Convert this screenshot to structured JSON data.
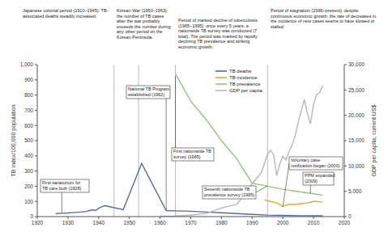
{
  "chart_data": {
    "type": "line",
    "y_label": "TB index/100,000 population",
    "y2_label": "GDP per capita, current US$",
    "xlim": [
      1920,
      2020
    ],
    "xticks": [
      1920,
      1930,
      1940,
      1950,
      1960,
      1970,
      1980,
      1990,
      2000,
      2010,
      2020
    ],
    "ylim": [
      0,
      1000
    ],
    "yticks": [
      0,
      100,
      200,
      300,
      400,
      500,
      600,
      700,
      800,
      900,
      {
        "value": 1000,
        "label": "1,000"
      }
    ],
    "y2lim": [
      0,
      30000
    ],
    "y2ticks": [
      0,
      {
        "value": 5000,
        "label": "5,000"
      },
      {
        "value": 10000,
        "label": "10,000"
      },
      {
        "value": 15000,
        "label": "15,000"
      },
      {
        "value": 20000,
        "label": "20,000"
      },
      {
        "value": 25000,
        "label": "25,000"
      },
      {
        "value": 30000,
        "label": "30,000"
      }
    ],
    "grid": false,
    "legend": "upper center",
    "series": [
      {
        "name": "TB deaths",
        "color": "#4e6fa5",
        "x": [
          1926,
          1928,
          1930,
          1932,
          1934,
          1936,
          1937,
          1938,
          1939,
          1940,
          1941,
          1942,
          1943,
          1948,
          1954,
          1962,
          1965,
          1970,
          1975,
          1980,
          1985,
          1990,
          1995,
          2000,
          2005,
          2010,
          2013
        ],
        "values": [
          20,
          22,
          24,
          27,
          30,
          34,
          40,
          45,
          40,
          55,
          65,
          72,
          68,
          45,
          350,
          40,
          38,
          35,
          30,
          25,
          20,
          15,
          10,
          8,
          6,
          5,
          5
        ]
      },
      {
        "name": "TB incidence",
        "color": "#f0a52a",
        "x": [
          1994,
          1996,
          1998,
          1999,
          2000,
          2001,
          2002,
          2004,
          2006,
          2008,
          2010,
          2011,
          2012,
          2013
        ],
        "values": [
          110,
          100,
          90,
          80,
          65,
          75,
          80,
          80,
          85,
          90,
          100,
          100,
          98,
          95
        ]
      },
      {
        "name": "TB prevalence",
        "color": "#8bc878",
        "x": [
          1965,
          1970,
          1975,
          1980,
          1985,
          1990,
          1995,
          2000,
          2005,
          2010,
          2013
        ],
        "values": [
          940,
          760,
          640,
          500,
          380,
          220,
          200,
          180,
          165,
          150,
          140
        ]
      },
      {
        "name": "GDP per capita",
        "color": "#b7b7b7",
        "axis": "y2",
        "x": [
          1960,
          1965,
          1970,
          1975,
          1980,
          1985,
          1988,
          1990,
          1993,
          1995,
          1996,
          1997,
          1998,
          1999,
          2000,
          2001,
          2002,
          2003,
          2004,
          2005,
          2006,
          2007,
          2008,
          2009,
          2010,
          2011,
          2012,
          2013
        ],
        "values": [
          80,
          110,
          280,
          620,
          1700,
          2450,
          4700,
          6500,
          8700,
          12300,
          13100,
          12200,
          8100,
          10400,
          11900,
          11200,
          12800,
          14200,
          15900,
          18600,
          20900,
          23100,
          20400,
          18300,
          22200,
          24100,
          24500,
          25900
        ]
      }
    ],
    "periods": [
      {
        "text": "Japanese colonial period (1910–1945): TB-associated deaths steadily increased.",
        "line": 1945
      },
      {
        "text": "Korean War (1950–1953): the number of TB cases after the war probably exceeds the number during any other period on the Korean Peninsula.",
        "line": 1953
      },
      {
        "text": "Period of marked decline of tuberculosis (1965–1995): once every 5 years, a nationwide TB survey was conducted (7 total). The period was marked by rapidly declining TB prevalence and striking economic growth.",
        "line": 1965
      },
      {
        "text": "Period of stagnation (1996–present): despite continuous economic growth, the rate of decreases in the incidence of new cases seems to have slowed or stalled.",
        "line": 1995
      }
    ],
    "events": [
      {
        "text": "First sanatorium for TB care built (1928)",
        "x": 1928
      },
      {
        "text": "National TB Program established (1962)",
        "x": 1962
      },
      {
        "text": "First nationwide TB survey (1965)",
        "x": 1965
      },
      {
        "text": "Seventh nationwide TB prevalence survey (1995)",
        "x": 1995
      },
      {
        "text": "Voluntary case notification began (2000)",
        "x": 2000
      },
      {
        "text": "PPM expanded (2009)",
        "x": 2009
      }
    ]
  }
}
